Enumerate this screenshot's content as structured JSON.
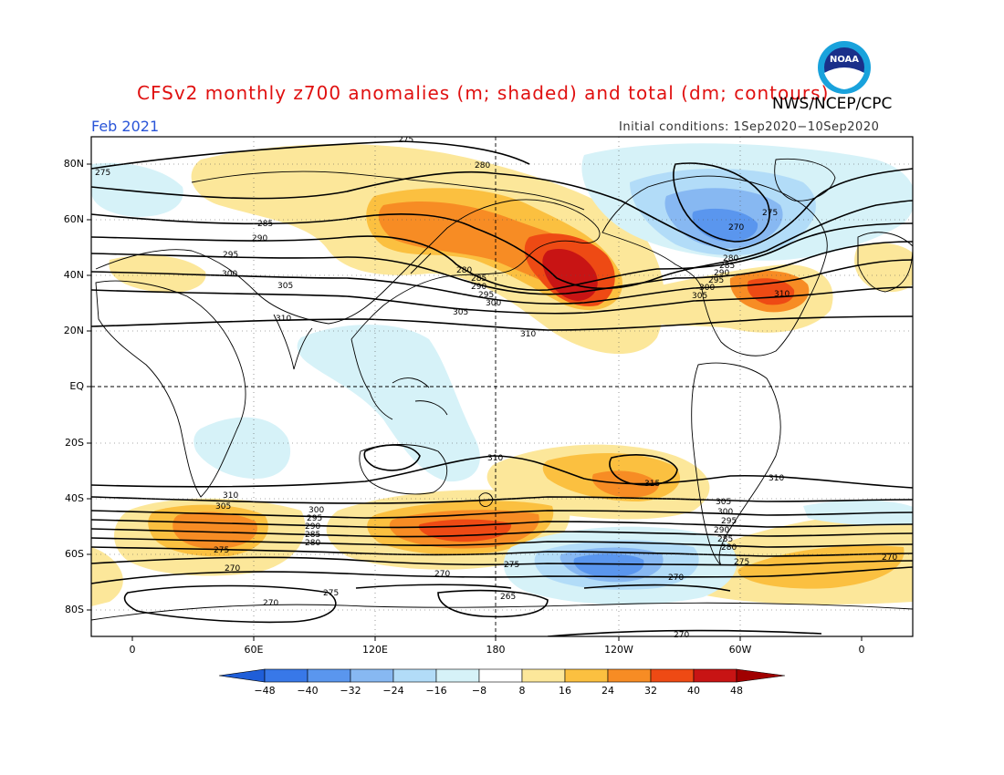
{
  "header": {
    "title": "CFSv2 monthly z700 anomalies (m; shaded) and total (dm; contours)",
    "agency": "NWS/NCEP/CPC",
    "period": "Feb 2021",
    "initial_conditions": "Initial conditions: 1Sep2020−10Sep2020"
  },
  "axes": {
    "lat_labels": [
      "80N",
      "60N",
      "40N",
      "20N",
      "EQ",
      "20S",
      "40S",
      "60S",
      "80S"
    ],
    "lon_labels": [
      "0",
      "60E",
      "120E",
      "180",
      "120W",
      "60W",
      "0"
    ]
  },
  "contour_labels": [
    "275",
    "280",
    "275",
    "285",
    "290",
    "295",
    "300",
    "305",
    "310",
    "280",
    "285",
    "290",
    "295",
    "300",
    "305",
    "310",
    "270",
    "275",
    "280",
    "285",
    "290",
    "295",
    "300",
    "305",
    "310",
    "310",
    "315",
    "310",
    "310",
    "305",
    "300",
    "295",
    "290",
    "285",
    "280",
    "275",
    "270",
    "305",
    "300",
    "295",
    "290",
    "285",
    "280",
    "275",
    "270",
    "270",
    "275",
    "265",
    "270",
    "275",
    "270",
    "270"
  ],
  "colorbar": {
    "labels": [
      "−48",
      "−40",
      "−32",
      "−24",
      "−16",
      "−8",
      "8",
      "16",
      "24",
      "32",
      "40",
      "48"
    ],
    "colors": [
      "#1f5ed8",
      "#3878e8",
      "#5a96ee",
      "#87b8f2",
      "#b2dcf8",
      "#d6f2f8",
      "#ffffff",
      "#fce79a",
      "#fbc040",
      "#f78c24",
      "#ee4a14",
      "#c81414",
      "#a00000"
    ]
  },
  "logo": {
    "text": "NOAA"
  }
}
